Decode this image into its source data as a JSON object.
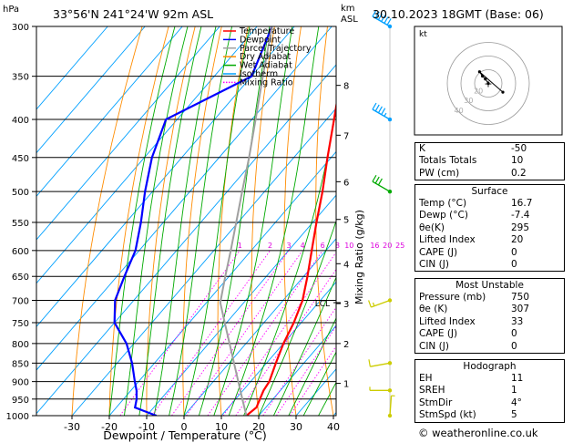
{
  "header": {
    "location": "33°56'N 241°24'W 92m ASL",
    "datetime": "30.10.2023 18GMT (Base: 06)",
    "hpa_label": "hPa",
    "km_label": "km",
    "asl_label": "ASL"
  },
  "legend": [
    {
      "label": "Temperature",
      "color": "#ff0000",
      "dash": "solid"
    },
    {
      "label": "Dewpoint",
      "color": "#0000ff",
      "dash": "solid"
    },
    {
      "label": "Parcel Trajectory",
      "color": "#a0a0a0",
      "dash": "solid"
    },
    {
      "label": "Dry Adiabat",
      "color": "#ff8c00",
      "dash": "solid"
    },
    {
      "label": "Wet Adiabat",
      "color": "#00aa00",
      "dash": "solid"
    },
    {
      "label": "Isotherm",
      "color": "#00a0ff",
      "dash": "solid"
    },
    {
      "label": "Mixing Ratio",
      "color": "#ff00ff",
      "dash": "dotted"
    }
  ],
  "chart_data": {
    "type": "line",
    "title": "33°56'N 241°24'W 92m ASL",
    "xlabel": "Dewpoint / Temperature (°C)",
    "ylabel": "hPa",
    "right_ylabel": "Mixing Ratio (g/kg)",
    "xlim": [
      -40,
      40
    ],
    "pressure_range": [
      300,
      1000
    ],
    "pressure_ticks": [
      300,
      350,
      400,
      450,
      500,
      550,
      600,
      650,
      700,
      750,
      800,
      850,
      900,
      950,
      1000
    ],
    "x_ticks": [
      -30,
      -20,
      -10,
      0,
      10,
      20,
      30,
      40
    ],
    "x_tick_labels": [
      "-30",
      "-20",
      "-10",
      "0",
      "10",
      "20",
      "30",
      "40"
    ],
    "km_ticks": [
      {
        "km": "1",
        "p": 905
      },
      {
        "km": "2",
        "p": 800
      },
      {
        "km": "3",
        "p": 707
      },
      {
        "km": "4",
        "p": 625
      },
      {
        "km": "5",
        "p": 545
      },
      {
        "km": "6",
        "p": 485
      },
      {
        "km": "7",
        "p": 420
      },
      {
        "km": "8",
        "p": 360
      }
    ],
    "lcl": {
      "label": "LCL",
      "p": 705
    },
    "mixing_ratio_labels": [
      "1",
      "2",
      "3",
      "4",
      "6",
      "8",
      "10",
      "16",
      "20",
      "25"
    ],
    "series": [
      {
        "name": "Temperature",
        "color": "#ff0000",
        "p": [
          1000,
          975,
          950,
          925,
          900,
          850,
          800,
          750,
          700,
          650,
          600,
          550,
          500,
          450,
          400,
          350,
          300
        ],
        "t": [
          16.7,
          17.5,
          16.5,
          15.5,
          15.0,
          12.5,
          10.0,
          8.0,
          5.2,
          1.0,
          -3.8,
          -9.0,
          -14.5,
          -21.0,
          -28.0,
          -36.0,
          -44.5
        ]
      },
      {
        "name": "Dewpoint",
        "color": "#0000ff",
        "p": [
          1000,
          985,
          975,
          950,
          925,
          900,
          850,
          800,
          750,
          700,
          650,
          600,
          550,
          500,
          450,
          400,
          350,
          300
        ],
        "t": [
          -7.4,
          -12.0,
          -15.0,
          -16.5,
          -18.5,
          -21.0,
          -26.0,
          -32.0,
          -40.0,
          -45.0,
          -48.0,
          -51.0,
          -56.0,
          -62.0,
          -68.0,
          -73.0,
          -60.0,
          -66.0
        ]
      },
      {
        "name": "Parcel Trajectory",
        "color": "#a0a0a0",
        "p": [
          1000,
          950,
          900,
          850,
          800,
          750,
          705,
          650,
          600,
          550,
          500,
          450,
          400,
          350,
          300
        ],
        "t": [
          16.7,
          11.8,
          6.7,
          1.3,
          -4.4,
          -10.5,
          -16.3,
          -21.0,
          -25.5,
          -30.5,
          -36.0,
          -42.0,
          -49.0,
          -57.0,
          -66.0
        ]
      }
    ],
    "wind_barbs": [
      {
        "p": 300,
        "dir": 300,
        "speed": 60
      },
      {
        "p": 400,
        "dir": 300,
        "speed": 45
      },
      {
        "p": 500,
        "dir": 300,
        "speed": 30
      },
      {
        "p": 700,
        "dir": 250,
        "speed": 15
      },
      {
        "p": 850,
        "dir": 260,
        "speed": 10
      },
      {
        "p": 925,
        "dir": 270,
        "speed": 7
      },
      {
        "p": 1000,
        "dir": 4,
        "speed": 5
      }
    ],
    "hodograph": {
      "label": "kt",
      "ring_labels": [
        "40",
        "30",
        "20"
      ],
      "points_u": [
        0,
        -2,
        -4,
        -6,
        10
      ],
      "points_v": [
        0,
        3,
        5,
        8,
        -6
      ]
    }
  },
  "table1": {
    "rows": [
      {
        "label": "K",
        "value": "-50"
      },
      {
        "label": "Totals Totals",
        "value": "10"
      },
      {
        "label": "PW (cm)",
        "value": "0.2"
      }
    ]
  },
  "surface": {
    "title": "Surface",
    "rows": [
      {
        "label": "Temp (°C)",
        "value": "16.7"
      },
      {
        "label": "Dewp (°C)",
        "value": "-7.4"
      },
      {
        "label": "θe(K)",
        "value": "295"
      },
      {
        "label": "Lifted Index",
        "value": "20"
      },
      {
        "label": "CAPE (J)",
        "value": "0"
      },
      {
        "label": "CIN (J)",
        "value": "0"
      }
    ]
  },
  "most_unstable": {
    "title": "Most Unstable",
    "rows": [
      {
        "label": "Pressure (mb)",
        "value": "750"
      },
      {
        "label": "θe (K)",
        "value": "307"
      },
      {
        "label": "Lifted Index",
        "value": "33"
      },
      {
        "label": "CAPE (J)",
        "value": "0"
      },
      {
        "label": "CIN (J)",
        "value": "0"
      }
    ]
  },
  "hodograph_table": {
    "title": "Hodograph",
    "rows": [
      {
        "label": "EH",
        "value": "11"
      },
      {
        "label": "SREH",
        "value": "1"
      },
      {
        "label": "StmDir",
        "value": "4°"
      },
      {
        "label": "StmSpd (kt)",
        "value": "5"
      }
    ]
  },
  "footer": "© weatheronline.co.uk"
}
